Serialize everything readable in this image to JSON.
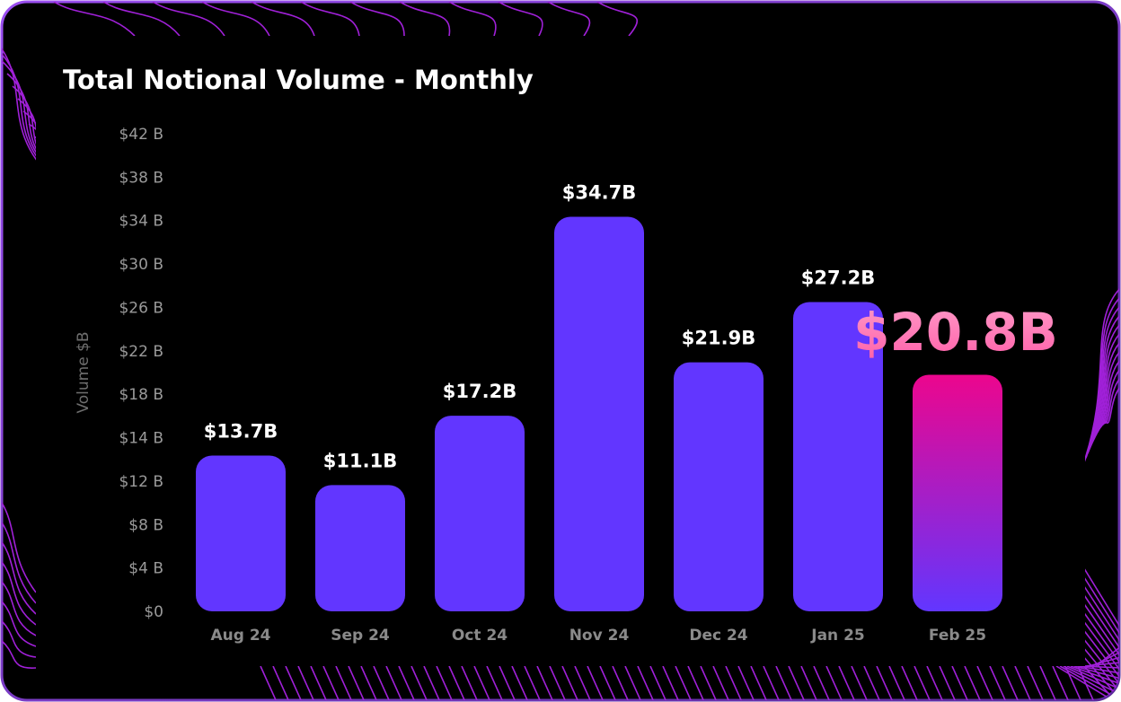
{
  "chart_data": {
    "type": "bar",
    "title": "Total Notional Volume - Monthly",
    "ylabel": "Volume $B",
    "xlabel": "",
    "categories": [
      "Aug 24",
      "Sep 24",
      "Oct 24",
      "Nov 24",
      "Dec 24",
      "Jan 25",
      "Feb 25"
    ],
    "values": [
      13.7,
      11.1,
      17.2,
      34.7,
      21.9,
      27.2,
      20.8
    ],
    "data_labels": [
      "$13.7B",
      "$11.1B",
      "$17.2B",
      "$34.7B",
      "$21.9B",
      "$27.2B",
      "$20.8B"
    ],
    "highlight_index": 6,
    "yticks": [
      "$0",
      "$4 B",
      "$8 B",
      "$12 B",
      "$14 B",
      "$18 B",
      "$22 B",
      "$26 B",
      "$30 B",
      "$34 B",
      "$38 B",
      "$42 B"
    ],
    "ylim": [
      0,
      42
    ],
    "grid": false,
    "colors": {
      "bar": "#6236ff",
      "highlight_top": "#ec068d",
      "highlight_bottom": "#6236ff",
      "highlight_label": "#ff7ab8",
      "background": "#000000",
      "border": "#8a3ee0",
      "axis_text": "#9a9a9a",
      "deco_lines": "#a020d8"
    }
  }
}
